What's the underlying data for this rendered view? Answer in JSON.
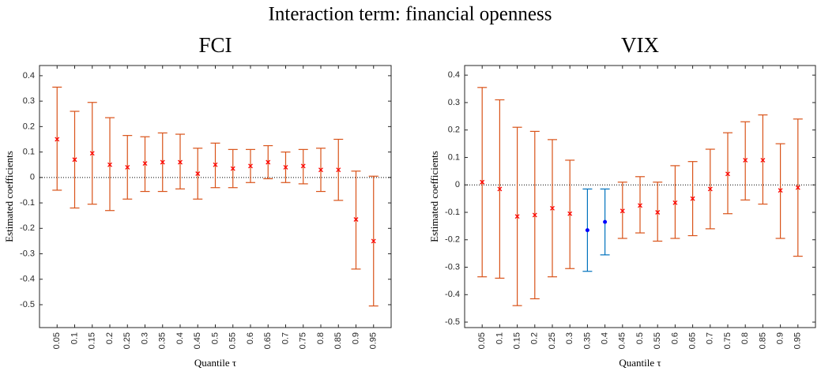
{
  "title": "Interaction term: financial openness",
  "chart_data": [
    {
      "type": "errorbar",
      "title": "FCI",
      "xlabel": "Quantile τ",
      "ylabel": "Estimated coefficients",
      "x": [
        0.05,
        0.1,
        0.15,
        0.2,
        0.25,
        0.3,
        0.35,
        0.4,
        0.45,
        0.5,
        0.55,
        0.6,
        0.65,
        0.7,
        0.75,
        0.8,
        0.85,
        0.9,
        0.95
      ],
      "values": [
        0.15,
        0.07,
        0.095,
        0.05,
        0.04,
        0.055,
        0.06,
        0.06,
        0.015,
        0.05,
        0.035,
        0.045,
        0.06,
        0.04,
        0.045,
        0.03,
        0.03,
        -0.165,
        -0.25
      ],
      "lower": [
        -0.05,
        -0.12,
        -0.105,
        -0.13,
        -0.085,
        -0.055,
        -0.055,
        -0.045,
        -0.085,
        -0.04,
        -0.04,
        -0.02,
        -0.005,
        -0.02,
        -0.025,
        -0.055,
        -0.09,
        -0.36,
        -0.505
      ],
      "upper": [
        0.355,
        0.26,
        0.295,
        0.235,
        0.165,
        0.16,
        0.175,
        0.17,
        0.115,
        0.135,
        0.11,
        0.11,
        0.125,
        0.1,
        0.11,
        0.115,
        0.15,
        0.025,
        0.005
      ],
      "colors": [
        "#d95319",
        "#d95319",
        "#d95319",
        "#d95319",
        "#d95319",
        "#d95319",
        "#d95319",
        "#d95319",
        "#d95319",
        "#d95319",
        "#d95319",
        "#d95319",
        "#d95319",
        "#d95319",
        "#d95319",
        "#d95319",
        "#d95319",
        "#d95319",
        "#d95319"
      ],
      "markers": [
        "x",
        "x",
        "x",
        "x",
        "x",
        "x",
        "x",
        "x",
        "x",
        "x",
        "x",
        "x",
        "x",
        "x",
        "x",
        "x",
        "x",
        "x",
        "x"
      ],
      "marker_colors": [
        "#ff0000",
        "#ff0000",
        "#ff0000",
        "#ff0000",
        "#ff0000",
        "#ff0000",
        "#ff0000",
        "#ff0000",
        "#ff0000",
        "#ff0000",
        "#ff0000",
        "#ff0000",
        "#ff0000",
        "#ff0000",
        "#ff0000",
        "#ff0000",
        "#ff0000",
        "#ff0000",
        "#ff0000"
      ],
      "hline": 0,
      "xlim": [
        0,
        1
      ],
      "xticks": [
        0.05,
        0.1,
        0.15,
        0.2,
        0.25,
        0.3,
        0.35,
        0.4,
        0.45,
        0.5,
        0.55,
        0.6,
        0.65,
        0.7,
        0.75,
        0.8,
        0.85,
        0.9,
        0.95
      ],
      "ylim": [
        -0.59,
        0.44
      ],
      "yticks": [
        -0.5,
        -0.4,
        -0.3,
        -0.2,
        -0.1,
        0,
        0.1,
        0.2,
        0.3,
        0.4
      ]
    },
    {
      "type": "errorbar",
      "title": "VIX",
      "xlabel": "Quantile τ",
      "ylabel": "Estimated coefficients",
      "x": [
        0.05,
        0.1,
        0.15,
        0.2,
        0.25,
        0.3,
        0.35,
        0.4,
        0.45,
        0.5,
        0.55,
        0.6,
        0.65,
        0.7,
        0.75,
        0.8,
        0.85,
        0.9,
        0.95
      ],
      "values": [
        0.01,
        -0.015,
        -0.115,
        -0.11,
        -0.085,
        -0.105,
        -0.165,
        -0.135,
        -0.095,
        -0.075,
        -0.1,
        -0.065,
        -0.05,
        -0.015,
        0.04,
        0.09,
        0.09,
        -0.02,
        -0.01
      ],
      "lower": [
        -0.335,
        -0.34,
        -0.44,
        -0.415,
        -0.335,
        -0.305,
        -0.315,
        -0.255,
        -0.195,
        -0.175,
        -0.205,
        -0.195,
        -0.185,
        -0.16,
        -0.105,
        -0.055,
        -0.07,
        -0.195,
        -0.26
      ],
      "upper": [
        0.355,
        0.31,
        0.21,
        0.195,
        0.165,
        0.09,
        -0.015,
        -0.015,
        0.01,
        0.03,
        0.01,
        0.07,
        0.085,
        0.13,
        0.19,
        0.23,
        0.255,
        0.15,
        0.24
      ],
      "colors": [
        "#d95319",
        "#d95319",
        "#d95319",
        "#d95319",
        "#d95319",
        "#d95319",
        "#0072bd",
        "#0072bd",
        "#d95319",
        "#d95319",
        "#d95319",
        "#d95319",
        "#d95319",
        "#d95319",
        "#d95319",
        "#d95319",
        "#d95319",
        "#d95319",
        "#d95319"
      ],
      "markers": [
        "x",
        "x",
        "x",
        "x",
        "x",
        "x",
        "dot",
        "dot",
        "x",
        "x",
        "x",
        "x",
        "x",
        "x",
        "x",
        "x",
        "x",
        "x",
        "x"
      ],
      "marker_colors": [
        "#ff0000",
        "#ff0000",
        "#ff0000",
        "#ff0000",
        "#ff0000",
        "#ff0000",
        "#0000ff",
        "#0000ff",
        "#ff0000",
        "#ff0000",
        "#ff0000",
        "#ff0000",
        "#ff0000",
        "#ff0000",
        "#ff0000",
        "#ff0000",
        "#ff0000",
        "#ff0000",
        "#ff0000"
      ],
      "hline": 0,
      "xlim": [
        0,
        1
      ],
      "xticks": [
        0.05,
        0.1,
        0.15,
        0.2,
        0.25,
        0.3,
        0.35,
        0.4,
        0.45,
        0.5,
        0.55,
        0.6,
        0.65,
        0.7,
        0.75,
        0.8,
        0.85,
        0.9,
        0.95
      ],
      "ylim": [
        -0.52,
        0.435
      ],
      "yticks": [
        -0.5,
        -0.4,
        -0.3,
        -0.2,
        -0.1,
        0,
        0.1,
        0.2,
        0.3,
        0.4
      ]
    }
  ]
}
